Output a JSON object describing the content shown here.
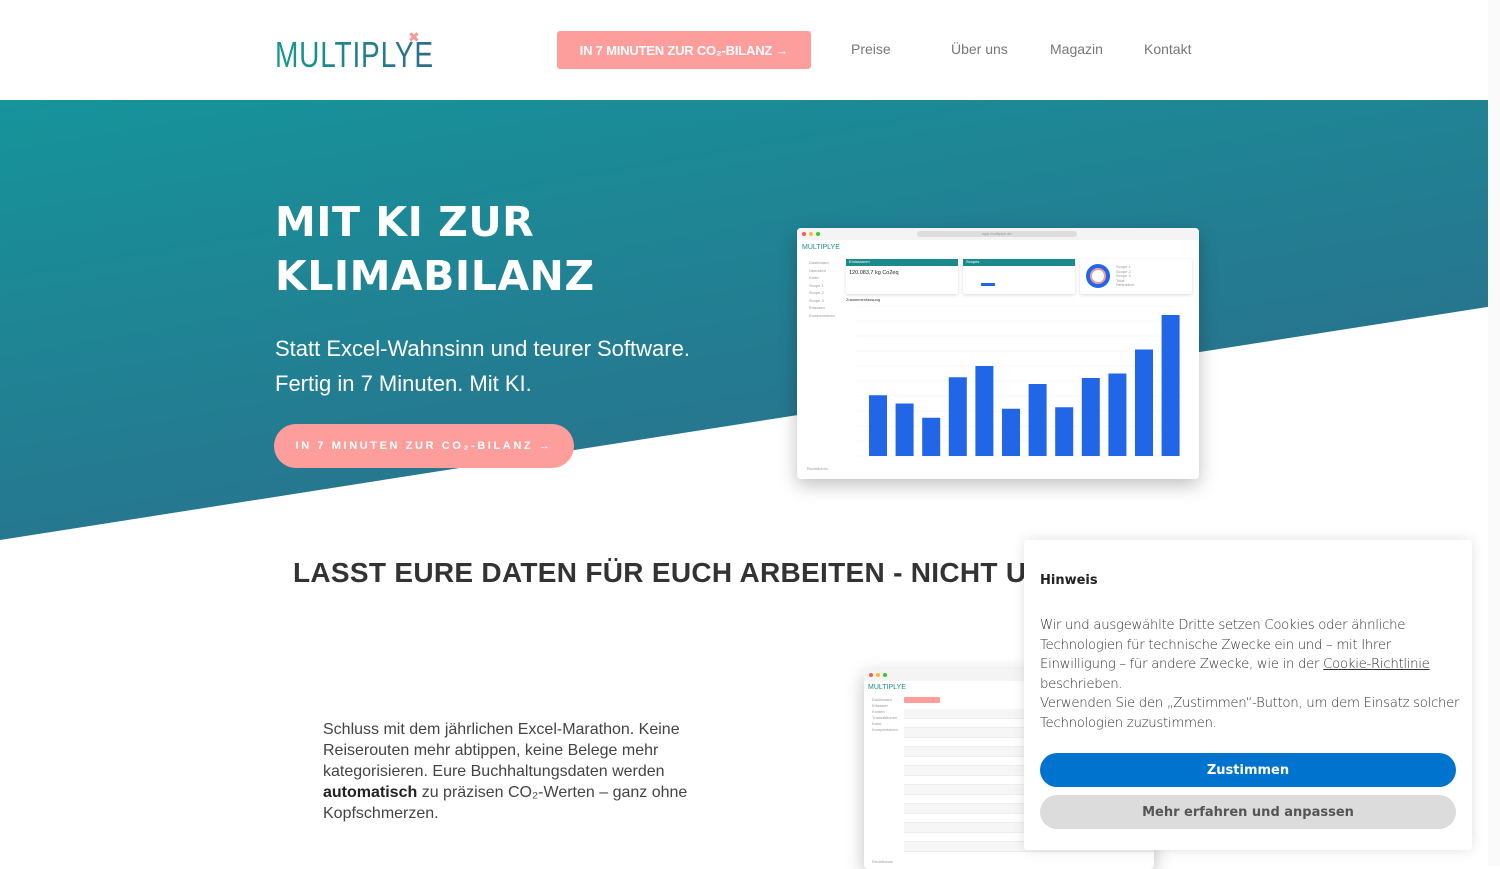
{
  "header": {
    "logo": "MULTIPLYE",
    "cta": "IN 7 MINUTEN ZUR CO₂-BILANZ →",
    "nav": [
      "Preise",
      "Über uns",
      "Magazin",
      "Kontakt"
    ]
  },
  "hero": {
    "title_line1": "MIT KI ZUR",
    "title_line2": "KLIMABILANZ",
    "subtitle": "Statt Excel-Wahnsinn und teurer Software. Fertig in 7 Minuten. Mit KI.",
    "cta": "IN 7 MINUTEN ZUR CO₂-BILANZ →"
  },
  "dashboard_preview": {
    "url": "app.multiplye.de",
    "logo": "MULTIPLYE",
    "sidebar": [
      "Dashboard",
      "Übersicht",
      "Karte",
      "Scope 1",
      "Scope 2",
      "Scope 3",
      "Erfassen",
      "Kompensieren"
    ],
    "footer_item": "Rechtliches",
    "card1_title": "Emissionen",
    "card1_value": "120.083,7 kg Co2eq",
    "card2_title": "Scopes",
    "summary_label": "Zusammenfassung",
    "legend": [
      "Scope 1",
      "Scope 2",
      "Scope 3",
      "Total",
      "Reduktion"
    ],
    "bar_values": [
      8100,
      7000,
      5100,
      10500,
      12000,
      6300,
      9600,
      6500,
      10400,
      11000,
      14200,
      18800
    ],
    "bar_color": "#2266e8"
  },
  "transactions_preview": {
    "logo": "MULTIPLYE",
    "sidebar": [
      "Dashboard",
      "Erfassen",
      "Konten",
      "Transaktionen",
      "Karte",
      "Kompensieren"
    ],
    "footer_item": "Rechtliches"
  },
  "section": {
    "title": "LASST EURE DATEN FÜR EUCH ARBEITEN - NICHT U",
    "text_before": "Schluss mit dem jährlichen Excel-Marathon. Keine Reiserouten mehr abtippen, keine Belege mehr kategorisieren. Eure Buchhaltungsdaten werden ",
    "text_bold": "automatisch",
    "text_after": " zu präzisen CO₂-Werten – ganz ohne Kopfschmerzen."
  },
  "cookie": {
    "title": "Hinweis",
    "text1": "Wir und ausgewählte Dritte setzen Cookies oder ähnliche Technologien für technische Zwecke ein und – mit Ihrer Einwilligung – für andere Zwecke, wie in der ",
    "link": "Cookie-Richtlinie",
    "text2": " beschrieben.",
    "text3": "Verwenden Sie den „Zustimmen“-Button, um dem Einsatz solcher Technologien zuzustimmen.",
    "accept": "Zustimmen",
    "more": "Mehr erfahren und anpassen"
  },
  "colors": {
    "teal": "#16949a",
    "coral": "#fd9e9c",
    "blue": "#0073ce"
  }
}
